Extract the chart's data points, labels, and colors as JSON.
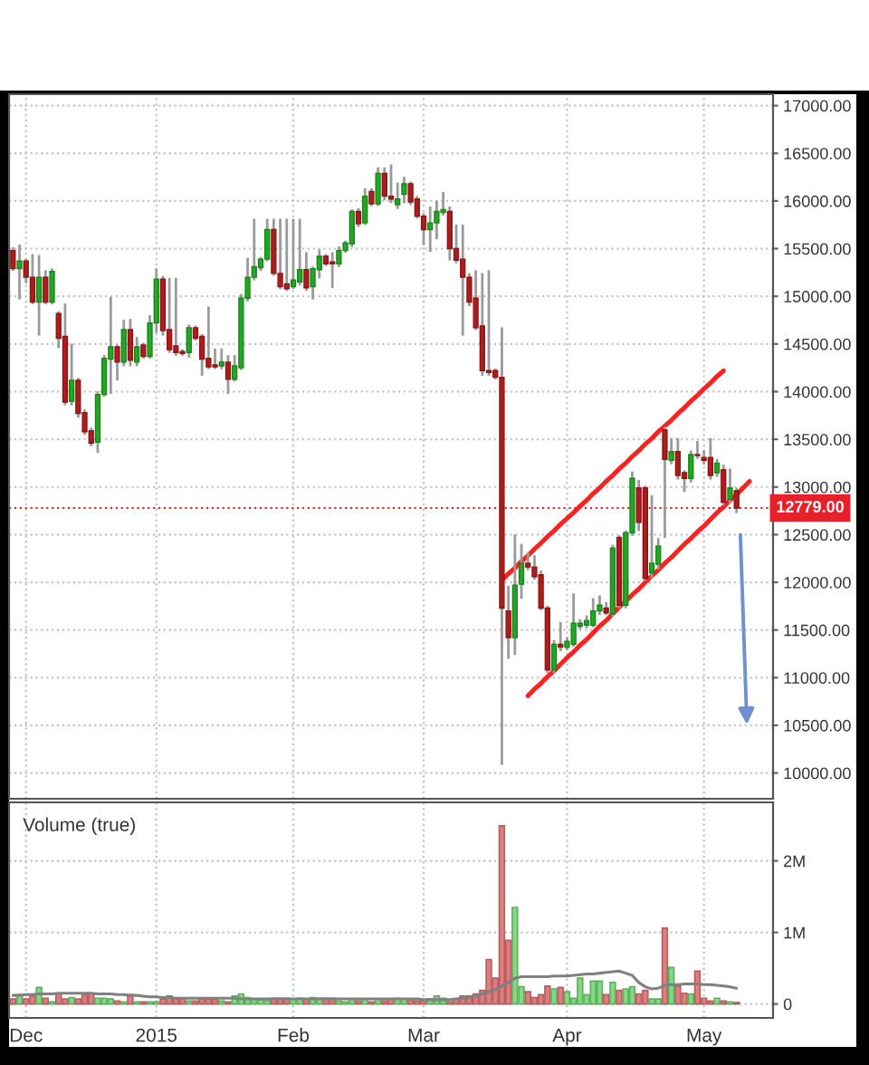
{
  "chart_data": [
    {
      "type": "candlestick",
      "categories": [
        null,
        null,
        null,
        null,
        null,
        null,
        null,
        null,
        null,
        null,
        null,
        null,
        null,
        null,
        null,
        null,
        null,
        null,
        null,
        null,
        null,
        null,
        null,
        null,
        null,
        null,
        null,
        null,
        null,
        null,
        null,
        null,
        null,
        null,
        null,
        null,
        null,
        null,
        null,
        null,
        null,
        null,
        null,
        null,
        null,
        null,
        null,
        null,
        null,
        null,
        null,
        null,
        null,
        null,
        null,
        null,
        null,
        null,
        null,
        null,
        null,
        null,
        null,
        null,
        null,
        null,
        null,
        null,
        null,
        null,
        null,
        null,
        null,
        null,
        null,
        null,
        null,
        null,
        null,
        null,
        null,
        null,
        null,
        null,
        null,
        null,
        null,
        null,
        null,
        null,
        null,
        null,
        null,
        null,
        null,
        null,
        null,
        null,
        null,
        null,
        null,
        null,
        null,
        null,
        null,
        null,
        null,
        null,
        null,
        null,
        null,
        null,
        null,
        null,
        null,
        null,
        null
      ],
      "ohlc": [
        [
          15480,
          15500,
          15280,
          15290
        ],
        [
          15290,
          15530,
          14980,
          15370
        ],
        [
          15370,
          15380,
          15150,
          15200
        ],
        [
          15200,
          15430,
          14930,
          14940
        ],
        [
          14940,
          15420,
          14600,
          15200
        ],
        [
          15200,
          15260,
          14930,
          14940
        ],
        [
          14940,
          15280,
          14930,
          15260
        ],
        [
          14820,
          14830,
          14470,
          14560
        ],
        [
          14580,
          14910,
          13870,
          13890
        ],
        [
          13900,
          14490,
          13870,
          14120
        ],
        [
          14120,
          14130,
          13740,
          13770
        ],
        [
          13780,
          13800,
          13560,
          13580
        ],
        [
          13590,
          13610,
          13440,
          13460
        ],
        [
          13470,
          13990,
          13370,
          13970
        ],
        [
          13970,
          14370,
          13960,
          14350
        ],
        [
          14340,
          14980,
          13990,
          14470
        ],
        [
          14470,
          14480,
          14130,
          14310
        ],
        [
          14310,
          14740,
          14280,
          14650
        ],
        [
          14650,
          14750,
          14280,
          14330
        ],
        [
          14310,
          14560,
          14280,
          14470
        ],
        [
          14490,
          14500,
          14360,
          14370
        ],
        [
          14370,
          14790,
          14360,
          14720
        ],
        [
          14720,
          15280,
          14630,
          15180
        ],
        [
          15180,
          15200,
          14600,
          14640
        ],
        [
          14650,
          15180,
          14420,
          14440
        ],
        [
          14480,
          15180,
          14390,
          14410
        ],
        [
          14420,
          14430,
          14390,
          14400
        ],
        [
          14410,
          14690,
          14370,
          14670
        ],
        [
          14670,
          14680,
          14550,
          14560
        ],
        [
          14580,
          14590,
          14180,
          14340
        ],
        [
          14350,
          14880,
          14250,
          14260
        ],
        [
          14280,
          14440,
          14250,
          14260
        ],
        [
          14270,
          14440,
          14250,
          14310
        ],
        [
          14310,
          14370,
          13990,
          14130
        ],
        [
          14130,
          14370,
          14120,
          14270
        ],
        [
          14250,
          15010,
          14240,
          14980
        ],
        [
          14980,
          15390,
          14960,
          15200
        ],
        [
          15200,
          15800,
          15180,
          15310
        ],
        [
          15300,
          15400,
          15280,
          15390
        ],
        [
          15390,
          15800,
          15380,
          15700
        ],
        [
          15700,
          15800,
          15230,
          15240
        ],
        [
          15240,
          15800,
          15090,
          15100
        ],
        [
          15130,
          15800,
          15070,
          15080
        ],
        [
          15100,
          15800,
          15090,
          15170
        ],
        [
          15150,
          15800,
          15130,
          15280
        ],
        [
          15280,
          15450,
          15070,
          15090
        ],
        [
          15100,
          15300,
          14980,
          15290
        ],
        [
          15280,
          15480,
          15200,
          15420
        ],
        [
          15420,
          15430,
          15330,
          15340
        ],
        [
          15360,
          15450,
          15100,
          15340
        ],
        [
          15340,
          15510,
          15320,
          15480
        ],
        [
          15480,
          15570,
          15470,
          15560
        ],
        [
          15550,
          15900,
          15530,
          15890
        ],
        [
          15890,
          15910,
          15740,
          15760
        ],
        [
          15770,
          16120,
          15760,
          16050
        ],
        [
          16100,
          16120,
          15960,
          15970
        ],
        [
          15970,
          16340,
          15960,
          16290
        ],
        [
          16290,
          16340,
          16020,
          16050
        ],
        [
          16050,
          16370,
          15990,
          16020
        ],
        [
          15960,
          16180,
          15930,
          16020
        ],
        [
          16070,
          16240,
          15990,
          16180
        ],
        [
          16180,
          16190,
          15970,
          15990
        ],
        [
          16020,
          16040,
          15830,
          15840
        ],
        [
          15840,
          15860,
          15550,
          15700
        ],
        [
          15700,
          15930,
          15480,
          15770
        ],
        [
          15770,
          15990,
          15610,
          15890
        ],
        [
          15880,
          16080,
          15860,
          15910
        ],
        [
          15890,
          15930,
          15390,
          15500
        ],
        [
          15500,
          15740,
          15360,
          15380
        ],
        [
          15390,
          15740,
          14600,
          15200
        ],
        [
          15200,
          15230,
          14910,
          14940
        ],
        [
          14980,
          15260,
          14660,
          14670
        ],
        [
          14690,
          15230,
          14180,
          14220
        ],
        [
          14220,
          15260,
          14180,
          14200
        ],
        [
          14220,
          14230,
          14140,
          14150
        ],
        [
          14150,
          14660,
          10100,
          11730
        ],
        [
          11700,
          11950,
          11210,
          11420
        ],
        [
          11420,
          12490,
          11250,
          11970
        ],
        [
          11980,
          12390,
          11840,
          12200
        ],
        [
          12200,
          12300,
          12140,
          12160
        ],
        [
          12160,
          12270,
          12040,
          12060
        ],
        [
          12080,
          12110,
          11720,
          11730
        ],
        [
          11730,
          11740,
          11060,
          11080
        ],
        [
          11080,
          11380,
          11060,
          11350
        ],
        [
          11350,
          11570,
          11290,
          11320
        ],
        [
          11320,
          11410,
          11300,
          11380
        ],
        [
          11350,
          11870,
          11340,
          11570
        ],
        [
          11540,
          11600,
          11520,
          11570
        ],
        [
          11550,
          11640,
          11530,
          11600
        ],
        [
          11550,
          11820,
          11540,
          11700
        ],
        [
          11700,
          11850,
          11670,
          11760
        ],
        [
          11730,
          11780,
          11670,
          11680
        ],
        [
          11670,
          12380,
          11650,
          12360
        ],
        [
          12470,
          12480,
          11740,
          11760
        ],
        [
          11760,
          12530,
          11740,
          12520
        ],
        [
          12520,
          13150,
          12500,
          13090
        ],
        [
          12990,
          13060,
          12550,
          12630
        ],
        [
          12990,
          13000,
          12030,
          12040
        ],
        [
          12100,
          12900,
          12050,
          12200
        ],
        [
          12190,
          12450,
          12150,
          12380
        ],
        [
          13600,
          13620,
          12480,
          13290
        ],
        [
          13280,
          13500,
          13250,
          13370
        ],
        [
          13370,
          13500,
          13090,
          13120
        ],
        [
          13150,
          13160,
          12960,
          13090
        ],
        [
          13090,
          13370,
          13060,
          13340
        ],
        [
          13340,
          13470,
          13310,
          13330
        ],
        [
          13310,
          13370,
          13250,
          13280
        ],
        [
          13310,
          13500,
          13090,
          13120
        ],
        [
          13150,
          13280,
          13120,
          13250
        ],
        [
          13180,
          13220,
          12820,
          12840
        ],
        [
          12870,
          13180,
          12840,
          12990
        ],
        [
          12960,
          12980,
          12740,
          12779
        ],
        null,
        null,
        null,
        null,
        null
      ],
      "colors": [
        "#b01c1c",
        "#22a822",
        "#b01c1c",
        "#b01c1c",
        "#22a822",
        "#b01c1c",
        "#22a822",
        "#b01c1c",
        "#b01c1c",
        "#22a822",
        "#b01c1c",
        "#b01c1c",
        "#b01c1c",
        "#22a822",
        "#22a822",
        "#22a822",
        "#b01c1c",
        "#22a822",
        "#b01c1c",
        "#22a822",
        "#b01c1c",
        "#22a822",
        "#22a822",
        "#b01c1c",
        "#b01c1c",
        "#b01c1c",
        "#b01c1c",
        "#22a822",
        "#b01c1c",
        "#b01c1c",
        "#b01c1c",
        "#b01c1c",
        "#22a822",
        "#b01c1c",
        "#22a822",
        "#22a822",
        "#22a822",
        "#22a822",
        "#22a822",
        "#22a822",
        "#b01c1c",
        "#b01c1c",
        "#b01c1c",
        "#22a822",
        "#22a822",
        "#b01c1c",
        "#22a822",
        "#22a822",
        "#b01c1c",
        "#b01c1c",
        "#22a822",
        "#22a822",
        "#22a822",
        "#b01c1c",
        "#22a822",
        "#b01c1c",
        "#22a822",
        "#b01c1c",
        "#b01c1c",
        "#22a822",
        "#22a822",
        "#b01c1c",
        "#b01c1c",
        "#b01c1c",
        "#22a822",
        "#22a822",
        "#22a822",
        "#b01c1c",
        "#b01c1c",
        "#b01c1c",
        "#b01c1c",
        "#b01c1c",
        "#b01c1c",
        "#b01c1c",
        "#b01c1c",
        "#b01c1c",
        "#b01c1c",
        "#22a822",
        "#22a822",
        "#b01c1c",
        "#b01c1c",
        "#b01c1c",
        "#b01c1c",
        "#22a822",
        "#b01c1c",
        "#22a822",
        "#22a822",
        "#22a822",
        "#22a822",
        "#22a822",
        "#22a822",
        "#b01c1c",
        "#22a822",
        "#b01c1c",
        "#22a822",
        "#22a822",
        "#b01c1c",
        "#b01c1c",
        "#22a822",
        "#22a822",
        "#b01c1c",
        "#22a822",
        "#b01c1c",
        "#b01c1c",
        "#22a822",
        "#b01c1c",
        "#b01c1c",
        "#b01c1c",
        "#22a822",
        "#b01c1c",
        "#22a822",
        "#b01c1c",
        null,
        null,
        null,
        null,
        null
      ],
      "series": [
        {
          "type": "line",
          "color": "#ff2020",
          "values": [
            null,
            null,
            null,
            null,
            null,
            null,
            null,
            null,
            null,
            null,
            null,
            null,
            null,
            null,
            null,
            null,
            null,
            null,
            null,
            null,
            null,
            null,
            null,
            null,
            null,
            null,
            null,
            null,
            null,
            null,
            null,
            null,
            null,
            null,
            null,
            null,
            null,
            null,
            null,
            null,
            null,
            null,
            null,
            null,
            null,
            null,
            null,
            null,
            null,
            null,
            null,
            null,
            null,
            null,
            null,
            null,
            null,
            null,
            null,
            null,
            null,
            null,
            null,
            null,
            null,
            null,
            null,
            null,
            null,
            null,
            null,
            null,
            null,
            null,
            null,
            12020,
            12090,
            12150,
            12220,
            12280,
            12350,
            12410,
            12480,
            12540,
            12610,
            12670,
            12730,
            12800,
            12860,
            12930,
            12990,
            13060,
            13120,
            13190,
            13250,
            13320,
            13380,
            13450,
            13510,
            13580,
            13640,
            13700,
            13770,
            13830,
            13900,
            13960,
            14030,
            14090,
            14160,
            14220,
            null,
            null,
            null,
            null,
            null,
            null,
            null
          ]
        },
        {
          "type": "line",
          "color": "#ff2020",
          "values": [
            null,
            null,
            null,
            null,
            null,
            null,
            null,
            null,
            null,
            null,
            null,
            null,
            null,
            null,
            null,
            null,
            null,
            null,
            null,
            null,
            null,
            null,
            null,
            null,
            null,
            null,
            null,
            null,
            null,
            null,
            null,
            null,
            null,
            null,
            null,
            null,
            null,
            null,
            null,
            null,
            null,
            null,
            null,
            null,
            null,
            null,
            null,
            null,
            null,
            null,
            null,
            null,
            null,
            null,
            null,
            null,
            null,
            null,
            null,
            null,
            null,
            null,
            null,
            null,
            null,
            null,
            null,
            null,
            null,
            null,
            null,
            null,
            null,
            null,
            null,
            null,
            null,
            null,
            null,
            10810,
            10880,
            10940,
            11010,
            11070,
            11140,
            11210,
            11270,
            11340,
            11400,
            11470,
            11540,
            11600,
            11670,
            11740,
            11800,
            11870,
            11930,
            12000,
            12070,
            12130,
            12200,
            12260,
            12330,
            12400,
            12460,
            12530,
            12590,
            12660,
            12730,
            12790,
            12860,
            12920,
            12990,
            13060,
            null,
            null,
            null
          ]
        }
      ],
      "ref_lines": [
        {
          "axis": "y",
          "value": 12779,
          "label": "12779.00",
          "color": "#e8202a",
          "line_style": "dotted"
        }
      ],
      "ylim": [
        9730,
        17120
      ],
      "yticks": [
        {
          "value": 10000,
          "label": "10000.00"
        },
        {
          "value": 10500,
          "label": "10500.00"
        },
        {
          "value": 11000,
          "label": "11000.00"
        },
        {
          "value": 11500,
          "label": "11500.00"
        },
        {
          "value": 12000,
          "label": "12000.00"
        },
        {
          "value": 12500,
          "label": "12500.00"
        },
        {
          "value": 13000,
          "label": "13000.00"
        },
        {
          "value": 13500,
          "label": "13500.00"
        },
        {
          "value": 14000,
          "label": "14000.00"
        },
        {
          "value": 14500,
          "label": "14500.00"
        },
        {
          "value": 15000,
          "label": "15000.00"
        },
        {
          "value": 15500,
          "label": "15500.00"
        },
        {
          "value": 16000,
          "label": "16000.00"
        },
        {
          "value": 16500,
          "label": "16500.00"
        },
        {
          "value": 17000,
          "label": "17000.00"
        }
      ],
      "grid": true,
      "tick_labels": "y"
    },
    {
      "type": "bar",
      "title": "Volume (true)",
      "categories": [
        null,
        null,
        "Dec",
        null,
        null,
        null,
        null,
        null,
        null,
        null,
        null,
        null,
        null,
        null,
        null,
        null,
        null,
        null,
        null,
        null,
        null,
        null,
        "2015",
        null,
        null,
        null,
        null,
        null,
        null,
        null,
        null,
        null,
        null,
        null,
        null,
        null,
        null,
        null,
        null,
        null,
        null,
        null,
        null,
        "Feb",
        null,
        null,
        null,
        null,
        null,
        null,
        null,
        null,
        null,
        null,
        null,
        null,
        null,
        null,
        null,
        null,
        null,
        null,
        null,
        "Mar",
        null,
        null,
        null,
        null,
        null,
        null,
        null,
        null,
        null,
        null,
        null,
        null,
        null,
        null,
        null,
        null,
        null,
        null,
        null,
        null,
        null,
        "Apr",
        null,
        null,
        null,
        null,
        null,
        null,
        null,
        null,
        null,
        null,
        null,
        null,
        null,
        null,
        null,
        null,
        null,
        null,
        null,
        null,
        "May",
        null,
        null,
        null,
        null,
        null,
        null,
        null,
        null,
        null,
        null
      ],
      "series": [
        {
          "type": "bar",
          "values": [
            70000,
            130000,
            70000,
            110000,
            230000,
            80000,
            30000,
            140000,
            70000,
            90000,
            70000,
            130000,
            150000,
            80000,
            80000,
            70000,
            40000,
            30000,
            130000,
            30000,
            30000,
            30000,
            30000,
            70000,
            110000,
            70000,
            80000,
            40000,
            40000,
            70000,
            70000,
            70000,
            40000,
            30000,
            110000,
            140000,
            90000,
            70000,
            60000,
            50000,
            80000,
            80000,
            80000,
            70000,
            80000,
            70000,
            90000,
            80000,
            80000,
            80000,
            40000,
            30000,
            70000,
            40000,
            70000,
            30000,
            70000,
            40000,
            70000,
            80000,
            70000,
            60000,
            40000,
            50000,
            70000,
            110000,
            80000,
            30000,
            70000,
            110000,
            110000,
            140000,
            190000,
            620000,
            360000,
            2490000,
            890000,
            1350000,
            240000,
            170000,
            90000,
            130000,
            250000,
            210000,
            230000,
            170000,
            80000,
            360000,
            130000,
            320000,
            320000,
            130000,
            300000,
            190000,
            210000,
            240000,
            140000,
            190000,
            70000,
            70000,
            1060000,
            510000,
            250000,
            150000,
            140000,
            460000,
            80000,
            40000,
            80000,
            40000,
            30000,
            20000,
            null,
            null,
            null,
            null,
            null
          ],
          "colors": [
            "#e37c7c",
            "#7fdc7f",
            "#e37c7c",
            "#e37c7c",
            "#7fdc7f",
            "#e37c7c",
            "#7fdc7f",
            "#e37c7c",
            "#e37c7c",
            "#7fdc7f",
            "#e37c7c",
            "#e37c7c",
            "#e37c7c",
            "#7fdc7f",
            "#7fdc7f",
            "#7fdc7f",
            "#e37c7c",
            "#7fdc7f",
            "#e37c7c",
            "#7fdc7f",
            "#e37c7c",
            "#7fdc7f",
            "#7fdc7f",
            "#e37c7c",
            "#e37c7c",
            "#e37c7c",
            "#e37c7c",
            "#7fdc7f",
            "#e37c7c",
            "#e37c7c",
            "#e37c7c",
            "#e37c7c",
            "#7fdc7f",
            "#e37c7c",
            "#7fdc7f",
            "#7fdc7f",
            "#7fdc7f",
            "#7fdc7f",
            "#7fdc7f",
            "#7fdc7f",
            "#e37c7c",
            "#e37c7c",
            "#e37c7c",
            "#7fdc7f",
            "#7fdc7f",
            "#e37c7c",
            "#7fdc7f",
            "#7fdc7f",
            "#e37c7c",
            "#e37c7c",
            "#7fdc7f",
            "#7fdc7f",
            "#7fdc7f",
            "#e37c7c",
            "#7fdc7f",
            "#e37c7c",
            "#7fdc7f",
            "#e37c7c",
            "#e37c7c",
            "#7fdc7f",
            "#7fdc7f",
            "#e37c7c",
            "#e37c7c",
            "#e37c7c",
            "#7fdc7f",
            "#7fdc7f",
            "#7fdc7f",
            "#e37c7c",
            "#e37c7c",
            "#e37c7c",
            "#e37c7c",
            "#e37c7c",
            "#e37c7c",
            "#e37c7c",
            "#e37c7c",
            "#e37c7c",
            "#e37c7c",
            "#7fdc7f",
            "#7fdc7f",
            "#e37c7c",
            "#e37c7c",
            "#e37c7c",
            "#e37c7c",
            "#7fdc7f",
            "#e37c7c",
            "#7fdc7f",
            "#7fdc7f",
            "#7fdc7f",
            "#7fdc7f",
            "#7fdc7f",
            "#7fdc7f",
            "#e37c7c",
            "#7fdc7f",
            "#e37c7c",
            "#7fdc7f",
            "#7fdc7f",
            "#e37c7c",
            "#e37c7c",
            "#7fdc7f",
            "#7fdc7f",
            "#e37c7c",
            "#7fdc7f",
            "#e37c7c",
            "#e37c7c",
            "#7fdc7f",
            "#e37c7c",
            "#e37c7c",
            "#e37c7c",
            "#7fdc7f",
            "#e37c7c",
            "#7fdc7f",
            "#e37c7c",
            null,
            null,
            null,
            null,
            null
          ]
        },
        {
          "type": "line",
          "color": "#808080",
          "values": [
            120000,
            120000,
            130000,
            130000,
            140000,
            140000,
            140000,
            150000,
            150000,
            150000,
            150000,
            150000,
            150000,
            140000,
            140000,
            140000,
            130000,
            130000,
            120000,
            120000,
            110000,
            100000,
            100000,
            90000,
            90000,
            80000,
            80000,
            80000,
            80000,
            80000,
            80000,
            80000,
            80000,
            80000,
            80000,
            70000,
            70000,
            70000,
            70000,
            70000,
            70000,
            70000,
            70000,
            70000,
            70000,
            70000,
            70000,
            70000,
            70000,
            70000,
            70000,
            70000,
            70000,
            70000,
            70000,
            70000,
            70000,
            70000,
            70000,
            70000,
            70000,
            70000,
            70000,
            60000,
            60000,
            60000,
            60000,
            60000,
            70000,
            80000,
            90000,
            110000,
            140000,
            170000,
            200000,
            250000,
            300000,
            360000,
            380000,
            380000,
            380000,
            380000,
            380000,
            390000,
            390000,
            390000,
            400000,
            410000,
            420000,
            420000,
            430000,
            440000,
            450000,
            460000,
            430000,
            400000,
            300000,
            240000,
            210000,
            220000,
            260000,
            270000,
            270000,
            280000,
            280000,
            280000,
            270000,
            270000,
            260000,
            250000,
            240000,
            220000,
            null,
            null,
            null,
            null,
            null
          ]
        }
      ],
      "ylim": [
        -195000,
        2818000
      ],
      "yticks": [
        0,
        {
          "value": 1000000,
          "label": "1M"
        },
        {
          "value": 2000000,
          "label": "2M"
        }
      ],
      "grid": true
    }
  ]
}
